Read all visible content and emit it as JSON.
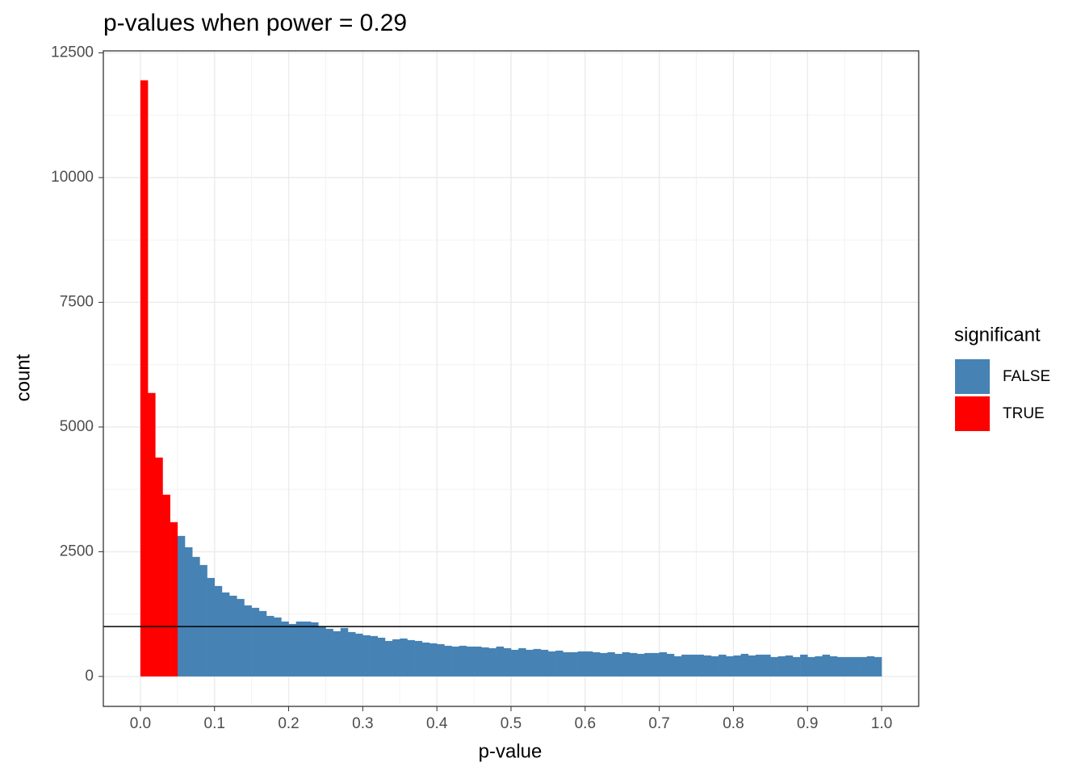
{
  "chart_data": {
    "type": "histogram",
    "title": "p-values when power = 0.29",
    "x_label": "p-value",
    "y_label": "count",
    "legend_title": "significant",
    "legend_position": "right",
    "grid": true,
    "hline": 1000,
    "xlim": [
      -0.05,
      1.05
    ],
    "ylim": [
      -600,
      12540
    ],
    "xticks": [
      {
        "value": 0,
        "label": "0.0"
      },
      0.1,
      0.2,
      0.3,
      0.4,
      0.5,
      0.6,
      0.7,
      0.8,
      0.9,
      {
        "value": 1,
        "label": "1.0"
      }
    ],
    "yticks": [
      0,
      2500,
      5000,
      7500,
      10000,
      12500
    ],
    "series": [
      {
        "name": "FALSE",
        "color": "#4682b4",
        "bins": [
          0.05,
          0.06,
          0.07,
          0.08,
          0.09,
          0.1,
          0.11,
          0.12,
          0.13,
          0.14,
          0.15,
          0.16,
          0.17,
          0.18,
          0.19,
          0.2,
          0.21,
          0.22,
          0.23,
          0.24,
          0.25,
          0.26,
          0.27,
          0.28,
          0.29,
          0.3,
          0.31,
          0.32,
          0.33,
          0.34,
          0.35,
          0.36,
          0.37,
          0.38,
          0.39,
          0.4,
          0.41,
          0.42,
          0.43,
          0.44,
          0.45,
          0.46,
          0.47,
          0.48,
          0.49,
          0.5,
          0.51,
          0.52,
          0.53,
          0.54,
          0.55,
          0.56,
          0.57,
          0.58,
          0.59,
          0.6,
          0.61,
          0.62,
          0.63,
          0.64,
          0.65,
          0.66,
          0.67,
          0.68,
          0.69,
          0.7,
          0.71,
          0.72,
          0.73,
          0.74,
          0.75,
          0.76,
          0.77,
          0.78,
          0.79,
          0.8,
          0.81,
          0.82,
          0.83,
          0.84,
          0.85,
          0.86,
          0.87,
          0.88,
          0.89,
          0.9,
          0.91,
          0.92,
          0.93,
          0.94,
          0.95,
          0.96,
          0.97,
          0.98,
          0.99,
          1.0
        ],
        "values": [
          2817,
          2590,
          2396,
          2234,
          1975,
          1813,
          1684,
          1619,
          1554,
          1425,
          1376,
          1312,
          1214,
          1182,
          1101,
          1052,
          1101,
          1101,
          1085,
          1004,
          955,
          907,
          971,
          890,
          858,
          826,
          810,
          777,
          712,
          745,
          761,
          729,
          712,
          680,
          664,
          648,
          615,
          599,
          615,
          599,
          599,
          583,
          567,
          599,
          567,
          534,
          567,
          534,
          551,
          534,
          502,
          518,
          486,
          486,
          502,
          502,
          486,
          470,
          486,
          453,
          486,
          470,
          453,
          470,
          470,
          486,
          453,
          405,
          437,
          437,
          437,
          421,
          405,
          437,
          405,
          421,
          453,
          421,
          437,
          437,
          389,
          405,
          421,
          389,
          437,
          389,
          405,
          437,
          405,
          389,
          389,
          389,
          389,
          405,
          389
        ]
      },
      {
        "name": "TRUE",
        "color": "#ff0000",
        "bins": [
          0,
          0.01,
          0.02,
          0.03,
          0.04,
          0.05
        ],
        "values": [
          11950,
          5683,
          4388,
          3643,
          3093
        ]
      }
    ]
  }
}
